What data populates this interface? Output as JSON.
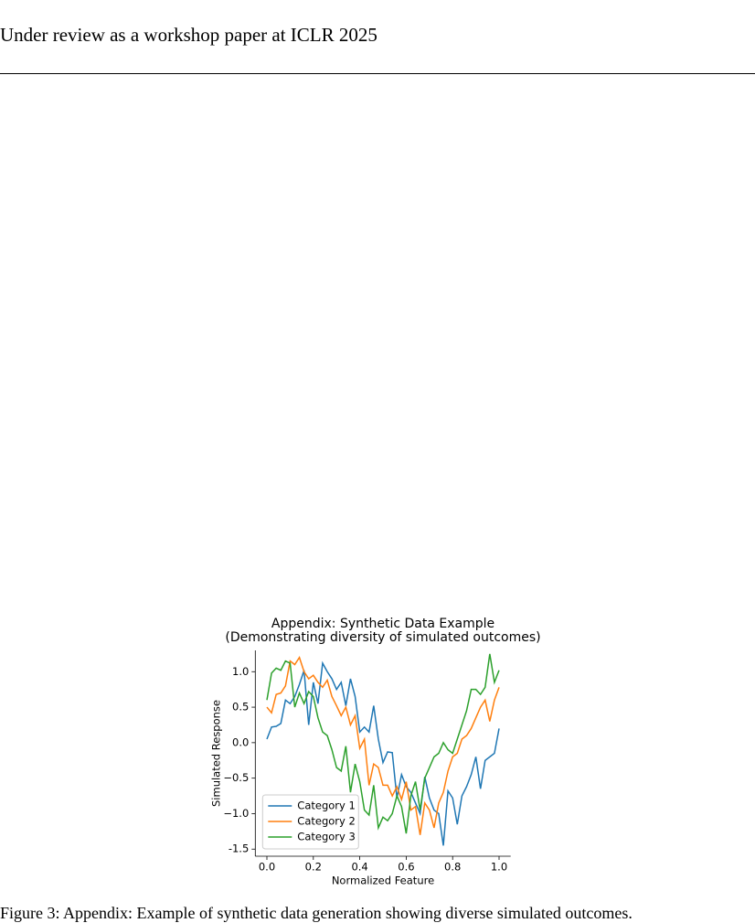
{
  "header": {
    "title": "Under review as a workshop paper at ICLR 2025"
  },
  "chart_data": {
    "type": "line",
    "title": [
      "Appendix: Synthetic Data Example",
      "(Demonstrating diversity of simulated outcomes)"
    ],
    "xlabel": "Normalized Feature",
    "ylabel": "Simulated Response",
    "x": [
      0,
      0.02,
      0.04,
      0.06,
      0.08,
      0.1,
      0.12,
      0.14,
      0.16,
      0.18,
      0.2,
      0.22,
      0.24,
      0.26,
      0.28,
      0.3,
      0.32,
      0.34,
      0.36,
      0.38,
      0.4,
      0.42,
      0.44,
      0.46,
      0.48,
      0.5,
      0.52,
      0.54,
      0.56,
      0.58,
      0.6,
      0.62,
      0.64,
      0.66,
      0.68,
      0.7,
      0.72,
      0.74,
      0.76,
      0.78,
      0.8,
      0.82,
      0.84,
      0.86,
      0.88,
      0.9,
      0.92,
      0.94,
      0.96,
      0.98,
      1.0
    ],
    "series": [
      {
        "name": "Category 1",
        "color": "#1f77b4",
        "values": [
          0.05,
          0.22,
          0.23,
          0.27,
          0.6,
          0.55,
          0.65,
          0.82,
          1.02,
          0.25,
          0.85,
          0.55,
          1.12,
          1.0,
          0.9,
          0.75,
          0.85,
          0.52,
          0.9,
          0.65,
          0.15,
          0.22,
          0.15,
          0.52,
          0.05,
          -0.28,
          -0.13,
          -0.14,
          -0.78,
          -0.45,
          -0.62,
          -0.7,
          -0.85,
          -1.0,
          -0.48,
          -0.78,
          -0.95,
          -1.0,
          -1.45,
          -0.68,
          -0.78,
          -1.15,
          -0.75,
          -0.62,
          -0.45,
          -0.2,
          -0.65,
          -0.25,
          -0.2,
          -0.15,
          0.2
        ]
      },
      {
        "name": "Category 2",
        "color": "#ff7f0e",
        "values": [
          0.5,
          0.42,
          0.68,
          0.7,
          0.8,
          1.15,
          1.1,
          1.2,
          1.0,
          0.9,
          0.95,
          0.85,
          0.78,
          0.88,
          0.65,
          0.52,
          0.38,
          0.5,
          0.25,
          0.38,
          -0.08,
          0.05,
          -0.6,
          -0.3,
          -0.35,
          -0.6,
          -0.6,
          -0.75,
          -0.62,
          -0.8,
          -0.55,
          -0.95,
          -0.9,
          -1.3,
          -0.85,
          -0.95,
          -1.2,
          -0.85,
          -0.7,
          -0.4,
          -0.2,
          -0.15,
          0.05,
          0.1,
          0.2,
          0.35,
          0.5,
          0.6,
          0.3,
          0.6,
          0.78
        ]
      },
      {
        "name": "Category 3",
        "color": "#2ca02c",
        "values": [
          0.6,
          0.98,
          1.05,
          1.02,
          1.15,
          1.12,
          0.5,
          0.7,
          0.55,
          0.72,
          0.65,
          0.35,
          0.15,
          0.1,
          -0.1,
          -0.35,
          -0.4,
          -0.05,
          -0.7,
          -0.3,
          -0.55,
          -0.95,
          -1.02,
          -0.6,
          -1.2,
          -1.05,
          -1.1,
          -1.0,
          -0.75,
          -0.9,
          -1.28,
          -0.75,
          -0.55,
          -0.95,
          -0.5,
          -0.35,
          -0.2,
          -0.15,
          0.0,
          -0.1,
          -0.15,
          0.05,
          0.25,
          0.45,
          0.75,
          0.75,
          0.68,
          0.78,
          1.25,
          0.85,
          1.02
        ]
      }
    ],
    "xlim": [
      -0.05,
      1.05
    ],
    "ylim": [
      -1.6,
      1.3
    ],
    "xticks": [
      {
        "value": 0,
        "label": "0.0"
      },
      0.2,
      0.4,
      0.6,
      0.8,
      {
        "value": 1,
        "label": "1.0"
      }
    ],
    "yticks": [
      -1.5,
      {
        "value": -1,
        "label": "−1.0"
      },
      {
        "value": -0.5,
        "label": "−0.5"
      },
      {
        "value": 0,
        "label": "0.0"
      },
      0.5,
      {
        "value": 1,
        "label": "1.0"
      }
    ],
    "legend": "lower left",
    "grid": false
  },
  "caption": "Figure 3: Appendix: Example of synthetic data generation showing diverse simulated outcomes."
}
